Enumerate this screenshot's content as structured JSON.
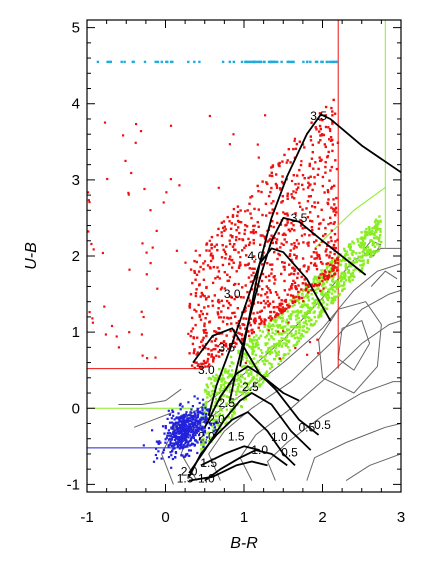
{
  "chart_data": {
    "type": "scatter",
    "title": "",
    "xlabel": "B-R",
    "ylabel": "U-B",
    "xlim": [
      -1,
      3
    ],
    "ylim": [
      -1.1,
      5.1
    ],
    "xticks": [
      "-1",
      "0",
      "1",
      "2",
      "3"
    ],
    "yticks": [
      "-1",
      "0",
      "1",
      "2",
      "3",
      "4",
      "5"
    ],
    "grid": false,
    "legend": "none",
    "colors": {
      "red": "#ee1111",
      "green": "#88ee22",
      "blue": "#2222dd",
      "cyan": "#22aadd",
      "contour": "#666666",
      "track": "#000000"
    },
    "boundary_lines": {
      "red_horizontal": {
        "y": 0.52,
        "x": [
          -1,
          0.45
        ]
      },
      "red_vertical": {
        "x": 2.2,
        "y": [
          0.52,
          5.1
        ]
      },
      "green_horizontal": {
        "y": 0.0,
        "x": [
          -1,
          0.35
        ]
      },
      "green_vertical": {
        "x": 2.8,
        "y": [
          2.1,
          5.1
        ]
      },
      "blue_horizontal": {
        "y": -0.52,
        "x": [
          -1,
          0.25
        ]
      },
      "cyan_row": {
        "y": 4.55,
        "x": [
          -0.95,
          2.2
        ]
      }
    },
    "tracks": [
      {
        "points": [
          [
            0.95,
            0.55
          ],
          [
            1.05,
            1.1
          ],
          [
            1.2,
            1.9
          ],
          [
            1.35,
            2.5
          ],
          [
            1.55,
            3.05
          ],
          [
            1.8,
            3.6
          ],
          [
            1.98,
            3.86
          ],
          [
            2.1,
            3.8
          ],
          [
            2.5,
            3.45
          ],
          [
            3.0,
            3.1
          ]
        ]
      },
      {
        "points": [
          [
            0.82,
            0.1
          ],
          [
            0.9,
            0.5
          ],
          [
            1.05,
            1.1
          ],
          [
            1.2,
            1.7
          ],
          [
            1.35,
            2.2
          ],
          [
            1.5,
            2.5
          ],
          [
            1.7,
            2.45
          ],
          [
            2.0,
            2.2
          ],
          [
            2.55,
            1.75
          ]
        ]
      },
      {
        "points": [
          [
            0.55,
            -0.1
          ],
          [
            0.65,
            0.3
          ],
          [
            0.85,
            0.85
          ],
          [
            1.05,
            1.45
          ],
          [
            1.2,
            1.9
          ],
          [
            1.35,
            2.1
          ],
          [
            1.5,
            2.05
          ],
          [
            1.8,
            1.7
          ],
          [
            2.1,
            1.15
          ]
        ]
      },
      {
        "points": [
          [
            0.35,
            0.6
          ],
          [
            0.6,
            0.95
          ],
          [
            0.85,
            1.05
          ],
          [
            1.0,
            0.8
          ],
          [
            1.2,
            0.45
          ],
          [
            1.5,
            0.2
          ],
          [
            1.7,
            0.1
          ]
        ]
      },
      {
        "points": [
          [
            0.5,
            -0.25
          ],
          [
            0.7,
            0.15
          ],
          [
            0.9,
            0.45
          ],
          [
            1.05,
            0.55
          ],
          [
            1.2,
            0.45
          ],
          [
            1.4,
            0.25
          ],
          [
            1.7,
            -0.15
          ],
          [
            1.95,
            -0.35
          ]
        ]
      },
      {
        "points": [
          [
            0.3,
            -0.85
          ],
          [
            0.5,
            -0.55
          ],
          [
            0.75,
            -0.15
          ],
          [
            0.95,
            0.1
          ],
          [
            1.1,
            0.2
          ],
          [
            1.35,
            0.05
          ],
          [
            1.6,
            -0.3
          ],
          [
            1.85,
            -0.55
          ]
        ]
      },
      {
        "points": [
          [
            0.3,
            -0.9
          ],
          [
            0.45,
            -0.6
          ],
          [
            0.65,
            -0.35
          ],
          [
            0.85,
            -0.15
          ],
          [
            1.05,
            -0.05
          ],
          [
            1.3,
            -0.3
          ],
          [
            1.5,
            -0.6
          ],
          [
            1.65,
            -0.75
          ]
        ]
      },
      {
        "points": [
          [
            0.5,
            -0.95
          ],
          [
            0.7,
            -0.8
          ],
          [
            0.95,
            -0.65
          ],
          [
            1.15,
            -0.55
          ],
          [
            1.35,
            -0.6
          ],
          [
            1.55,
            -0.75
          ]
        ]
      },
      {
        "points": [
          [
            0.3,
            -0.95
          ],
          [
            0.6,
            -0.9
          ],
          [
            0.9,
            -0.75
          ],
          [
            1.1,
            -0.7
          ],
          [
            1.3,
            -0.75
          ]
        ]
      },
      {
        "points": [
          [
            0.45,
            -0.75
          ],
          [
            0.75,
            -0.6
          ],
          [
            1.0,
            -0.5
          ],
          [
            1.2,
            -0.55
          ]
        ]
      }
    ],
    "track_labels": [
      {
        "text": "3.5",
        "x": 1.95,
        "y": 3.84
      },
      {
        "text": "3.5",
        "x": 1.7,
        "y": 2.5
      },
      {
        "text": "4.0",
        "x": 1.15,
        "y": 2.0
      },
      {
        "text": "3.0",
        "x": 0.85,
        "y": 1.5
      },
      {
        "text": "3.5",
        "x": 0.78,
        "y": 0.8
      },
      {
        "text": "3.0",
        "x": 0.52,
        "y": 0.5
      },
      {
        "text": "2.5",
        "x": 1.08,
        "y": 0.28
      },
      {
        "text": "2.5",
        "x": 0.78,
        "y": 0.07
      },
      {
        "text": "2.0",
        "x": 0.65,
        "y": -0.15
      },
      {
        "text": "2.0",
        "x": 0.52,
        "y": -0.37
      },
      {
        "text": "1.5",
        "x": 0.55,
        "y": -0.72
      },
      {
        "text": "2.0",
        "x": 0.3,
        "y": -0.83
      },
      {
        "text": "1.5",
        "x": 0.25,
        "y": -0.92
      },
      {
        "text": "1.0",
        "x": 0.52,
        "y": -0.92
      },
      {
        "text": "1.5",
        "x": 0.9,
        "y": -0.37
      },
      {
        "text": "1.0",
        "x": 1.2,
        "y": -0.55
      },
      {
        "text": "1.0",
        "x": 1.45,
        "y": -0.38
      },
      {
        "text": "0.5",
        "x": 1.58,
        "y": -0.58
      },
      {
        "text": "0.5",
        "x": 1.8,
        "y": -0.25
      },
      {
        "text": "0.5",
        "x": 2.0,
        "y": -0.22
      }
    ],
    "contours": [
      {
        "points": [
          [
            0.4,
            -0.95
          ],
          [
            0.2,
            -0.6
          ],
          [
            0.3,
            -0.3
          ],
          [
            0.6,
            -0.1
          ],
          [
            1.0,
            0.2
          ],
          [
            1.5,
            0.6
          ],
          [
            2.0,
            1.05
          ],
          [
            2.4,
            1.55
          ],
          [
            2.7,
            1.8
          ],
          [
            3.0,
            1.9
          ]
        ]
      },
      {
        "points": [
          [
            0.1,
            -1.0
          ],
          [
            -0.05,
            -0.6
          ],
          [
            0.15,
            -0.2
          ],
          [
            0.5,
            0.05
          ],
          [
            1.0,
            0.45
          ],
          [
            1.5,
            0.9
          ],
          [
            2.0,
            1.45
          ],
          [
            2.4,
            1.95
          ],
          [
            2.75,
            2.1
          ],
          [
            3.0,
            2.1
          ]
        ]
      },
      {
        "points": [
          [
            0.7,
            -0.95
          ],
          [
            0.55,
            -0.6
          ],
          [
            0.75,
            -0.3
          ],
          [
            1.1,
            0.0
          ],
          [
            1.6,
            0.35
          ],
          [
            2.1,
            0.85
          ],
          [
            2.5,
            1.3
          ],
          [
            2.85,
            1.5
          ],
          [
            3.0,
            1.55
          ]
        ]
      },
      {
        "points": [
          [
            1.1,
            -0.95
          ],
          [
            0.95,
            -0.65
          ],
          [
            1.15,
            -0.35
          ],
          [
            1.6,
            0.0
          ],
          [
            2.1,
            0.45
          ],
          [
            2.5,
            0.85
          ],
          [
            2.85,
            1.1
          ],
          [
            3.0,
            1.15
          ]
        ]
      },
      {
        "points": [
          [
            2.0,
            0.4
          ],
          [
            1.95,
            0.9
          ],
          [
            2.2,
            1.3
          ],
          [
            2.55,
            1.4
          ],
          [
            2.75,
            1.1
          ],
          [
            2.7,
            0.55
          ],
          [
            2.4,
            0.2
          ],
          [
            2.0,
            0.4
          ]
        ]
      },
      {
        "points": [
          [
            2.2,
            0.65
          ],
          [
            2.25,
            1.05
          ],
          [
            2.5,
            1.15
          ],
          [
            2.6,
            0.85
          ],
          [
            2.4,
            0.5
          ],
          [
            2.2,
            0.65
          ]
        ]
      },
      {
        "points": [
          [
            1.4,
            -0.95
          ],
          [
            1.3,
            -0.7
          ],
          [
            1.55,
            -0.45
          ],
          [
            2.0,
            -0.1
          ],
          [
            2.5,
            0.2
          ],
          [
            2.9,
            0.35
          ],
          [
            3.0,
            0.35
          ]
        ]
      },
      {
        "points": [
          [
            1.8,
            -0.95
          ],
          [
            1.9,
            -0.65
          ],
          [
            2.3,
            -0.45
          ],
          [
            2.8,
            -0.25
          ],
          [
            3.0,
            -0.2
          ]
        ]
      },
      {
        "points": [
          [
            2.3,
            -0.95
          ],
          [
            2.6,
            -0.75
          ],
          [
            3.0,
            -0.6
          ]
        ]
      },
      {
        "points": [
          [
            -0.6,
            0.05
          ],
          [
            -0.3,
            0.05
          ],
          [
            0.0,
            0.1
          ],
          [
            0.2,
            0.25
          ]
        ]
      },
      {
        "points": [
          [
            -0.4,
            -0.25
          ],
          [
            -0.15,
            -0.15
          ],
          [
            0.1,
            -0.05
          ]
        ]
      },
      {
        "points": [
          [
            2.5,
            2.05
          ],
          [
            2.62,
            2.2
          ],
          [
            2.74,
            2.15
          ],
          [
            2.65,
            2.0
          ],
          [
            2.5,
            2.05
          ]
        ]
      },
      {
        "points": [
          [
            2.62,
            1.6
          ],
          [
            2.8,
            1.8
          ],
          [
            2.95,
            1.7
          ]
        ]
      }
    ]
  }
}
